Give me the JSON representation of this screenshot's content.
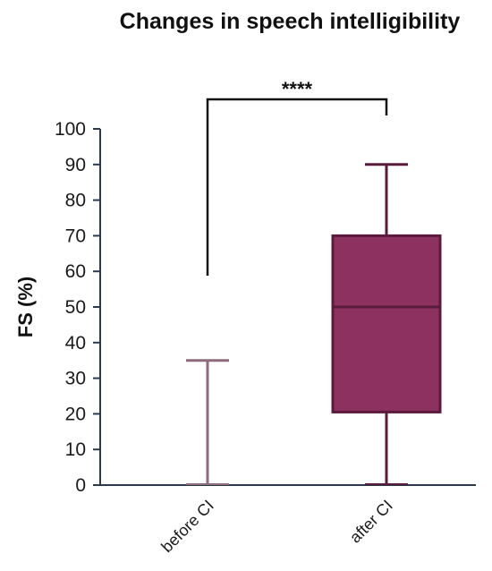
{
  "chart_data": {
    "type": "box",
    "title": "Changes in speech intelligibility",
    "ylabel": "FS (%)",
    "xlabel": "",
    "ylim": [
      0,
      100
    ],
    "yticks": [
      0,
      10,
      20,
      30,
      40,
      50,
      60,
      70,
      80,
      90,
      100
    ],
    "categories": [
      "before CI",
      "after CI"
    ],
    "boxes": [
      {
        "category": "before CI",
        "min": 0,
        "q1": 0,
        "median": 0,
        "q3": 0,
        "max": 35,
        "color": "#8e6b7d"
      },
      {
        "category": "after CI",
        "min": 0,
        "q1": 20.5,
        "median": 50,
        "q3": 70,
        "max": 90,
        "color": "#8c3160",
        "line_color": "#5a1a3b"
      }
    ],
    "annotation": {
      "text": "****",
      "from": "before CI",
      "to": "after CI"
    },
    "grid": false,
    "legend": "none"
  }
}
